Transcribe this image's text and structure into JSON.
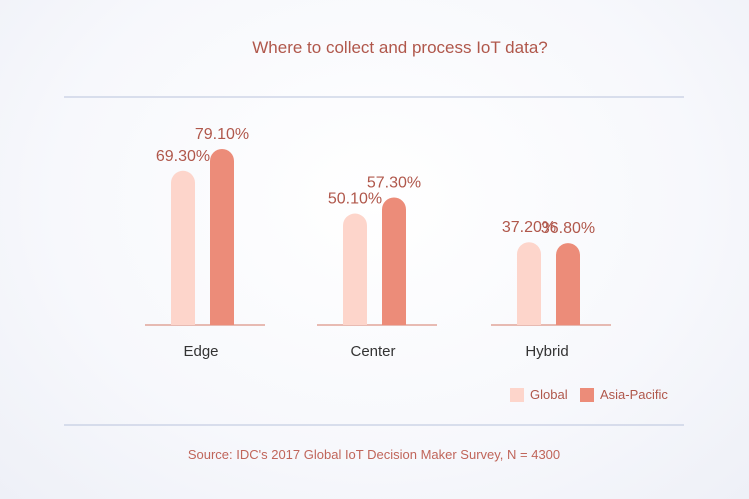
{
  "chart_data": {
    "type": "bar",
    "title": "Where to collect and process IoT data?",
    "categories": [
      "Edge",
      "Center",
      "Hybrid"
    ],
    "series": [
      {
        "name": "Global",
        "values": [
          69.3,
          50.1,
          37.2
        ],
        "labels": [
          "69.30%",
          "50.10%",
          "37.20%"
        ],
        "color": "#fdd5cb"
      },
      {
        "name": "Asia-Pacific",
        "values": [
          79.1,
          57.3,
          36.8
        ],
        "labels": [
          "79.10%",
          "57.30%",
          "36.80%"
        ],
        "color": "#ec8c79"
      }
    ],
    "legend_position": "bottom-right",
    "source": "Source: IDC's 2017 Global IoT Decision Maker Survey, N = 4300"
  },
  "colors": {
    "text_accent": "#b0574b",
    "divider": "#b9c3dc",
    "baseline": "#d47a68"
  }
}
